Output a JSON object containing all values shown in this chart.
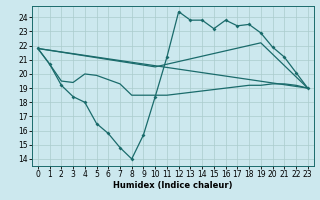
{
  "title": "",
  "xlabel": "Humidex (Indice chaleur)",
  "background_color": "#cce8ee",
  "grid_color": "#aacccc",
  "line_color": "#1a6b6b",
  "xlim": [
    -0.5,
    23.5
  ],
  "ylim": [
    13.5,
    24.8
  ],
  "yticks": [
    14,
    15,
    16,
    17,
    18,
    19,
    20,
    21,
    22,
    23,
    24
  ],
  "xticks": [
    0,
    1,
    2,
    3,
    4,
    5,
    6,
    7,
    8,
    9,
    10,
    11,
    12,
    13,
    14,
    15,
    16,
    17,
    18,
    19,
    20,
    21,
    22,
    23
  ],
  "series": [
    {
      "x": [
        0,
        1,
        2,
        3,
        4,
        5,
        6,
        7,
        8,
        9,
        10,
        11,
        12,
        13,
        14,
        15,
        16,
        17,
        18,
        19,
        20,
        21,
        22,
        23
      ],
      "y": [
        21.8,
        20.7,
        19.2,
        18.4,
        18.0,
        16.5,
        15.8,
        14.8,
        14.0,
        15.7,
        18.4,
        21.2,
        24.4,
        23.8,
        23.8,
        23.2,
        23.8,
        23.4,
        23.5,
        22.9,
        21.9,
        21.2,
        20.1,
        19.0
      ],
      "marker": true
    },
    {
      "x": [
        0,
        1,
        2,
        3,
        4,
        5,
        6,
        7,
        8,
        9,
        10,
        11,
        12,
        13,
        14,
        15,
        16,
        17,
        18,
        19,
        20,
        21,
        22,
        23
      ],
      "y": [
        21.8,
        20.7,
        19.5,
        19.4,
        20.0,
        19.9,
        19.6,
        19.3,
        18.5,
        18.5,
        18.5,
        18.5,
        18.6,
        18.7,
        18.8,
        18.9,
        19.0,
        19.1,
        19.2,
        19.2,
        19.3,
        19.3,
        19.2,
        19.0
      ],
      "marker": false
    },
    {
      "x": [
        0,
        23
      ],
      "y": [
        21.8,
        19.0
      ],
      "marker": false
    },
    {
      "x": [
        0,
        10,
        19,
        23
      ],
      "y": [
        21.8,
        20.5,
        22.2,
        19.0
      ],
      "marker": false
    }
  ]
}
